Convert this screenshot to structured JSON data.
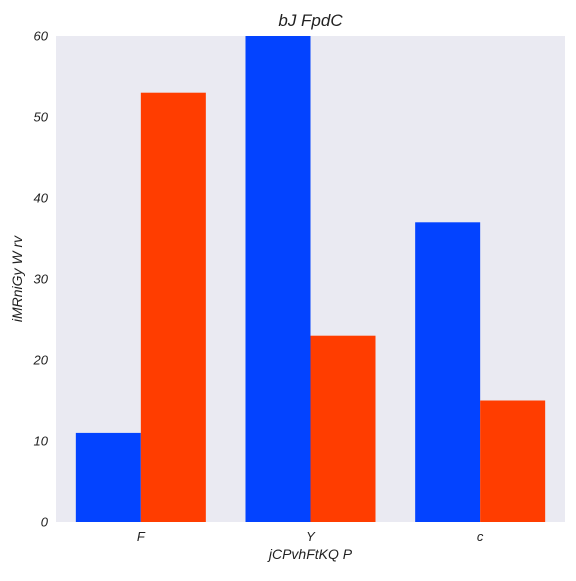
{
  "chart_data": {
    "type": "bar",
    "title": "bJ FpdC",
    "xlabel": "jCPvhFtKQ P",
    "ylabel": "iMRniGy W rv",
    "categories": [
      "F",
      "Y",
      "c"
    ],
    "series": [
      {
        "values": [
          11,
          60,
          37
        ],
        "color": "#0343ff"
      },
      {
        "values": [
          53,
          23,
          15
        ],
        "color": "#ff3d00"
      }
    ],
    "ylim": [
      0,
      60
    ],
    "yticks": [
      0,
      10,
      20,
      30,
      40,
      50,
      60
    ],
    "grid": false,
    "legend": "none",
    "plot_background": "#eaeaf2"
  }
}
